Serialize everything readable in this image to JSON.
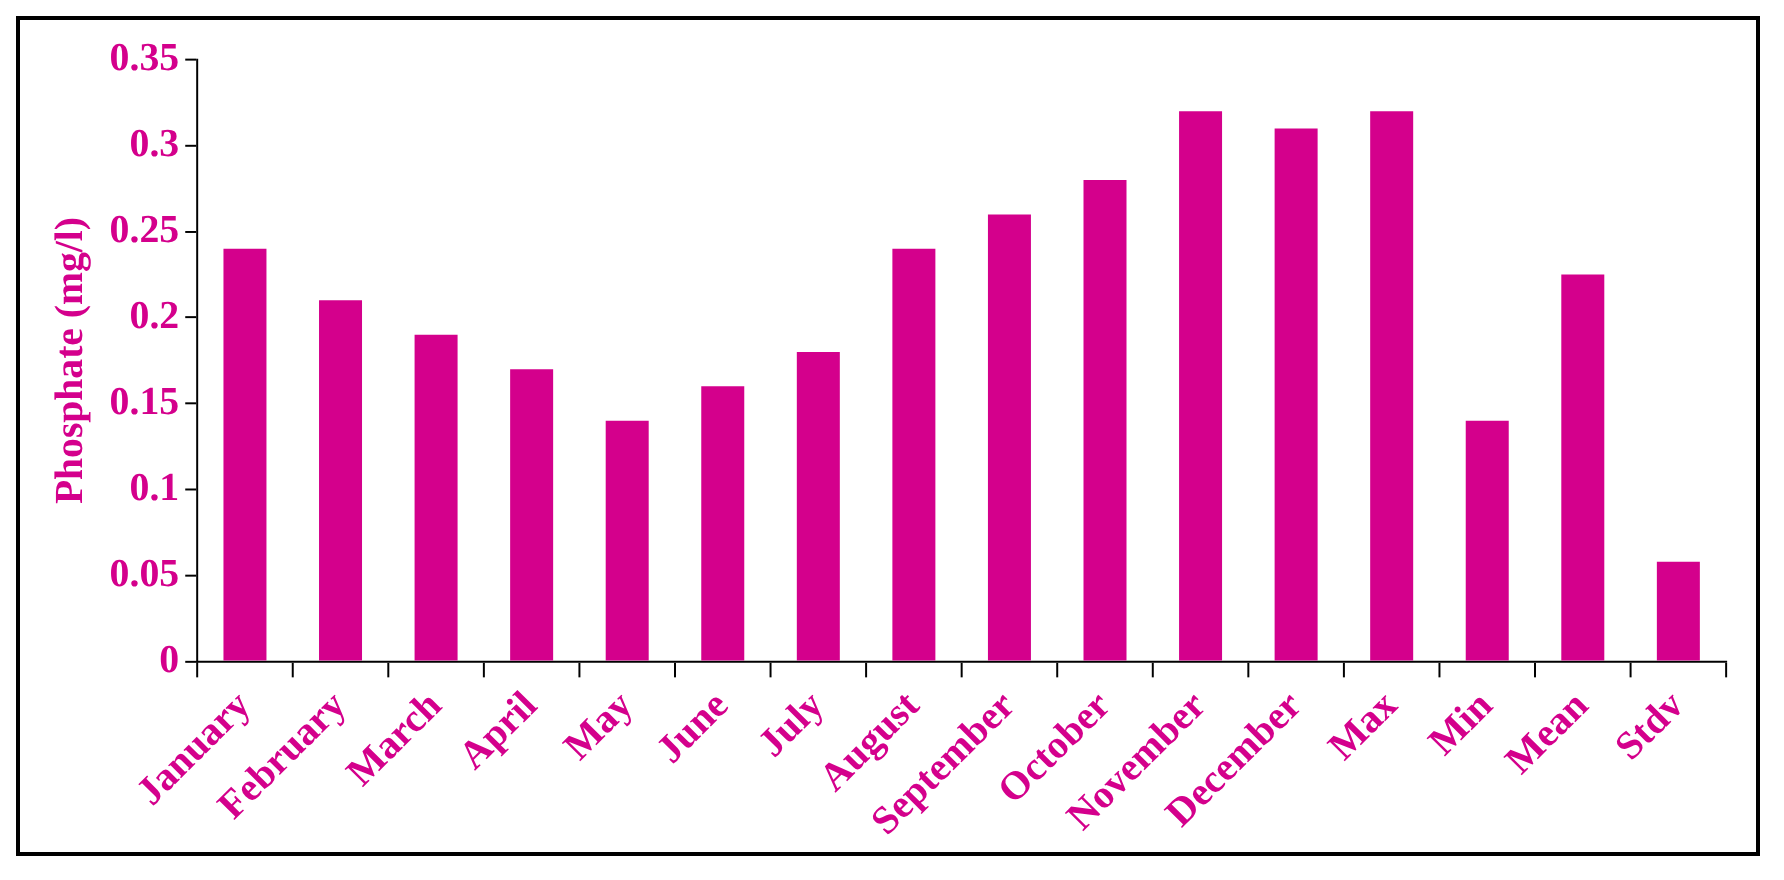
{
  "chart_data": {
    "type": "bar",
    "ylabel": "Phosphate (mg/l)",
    "categories": [
      "January",
      "February",
      "March",
      "April",
      "May",
      "June",
      "July",
      "August",
      "September",
      "October",
      "November",
      "December",
      "Max",
      "Min",
      "Mean",
      "Stdv"
    ],
    "values": [
      0.24,
      0.21,
      0.19,
      0.17,
      0.14,
      0.16,
      0.18,
      0.24,
      0.26,
      0.28,
      0.32,
      0.31,
      0.32,
      0.14,
      0.225,
      0.058
    ],
    "color": "#d4008c",
    "ylim": [
      0,
      0.35
    ],
    "yticks": [
      0,
      0.05,
      0.1,
      0.15,
      0.2,
      0.25,
      0.3,
      0.35
    ],
    "grid": false,
    "legend": false
  }
}
